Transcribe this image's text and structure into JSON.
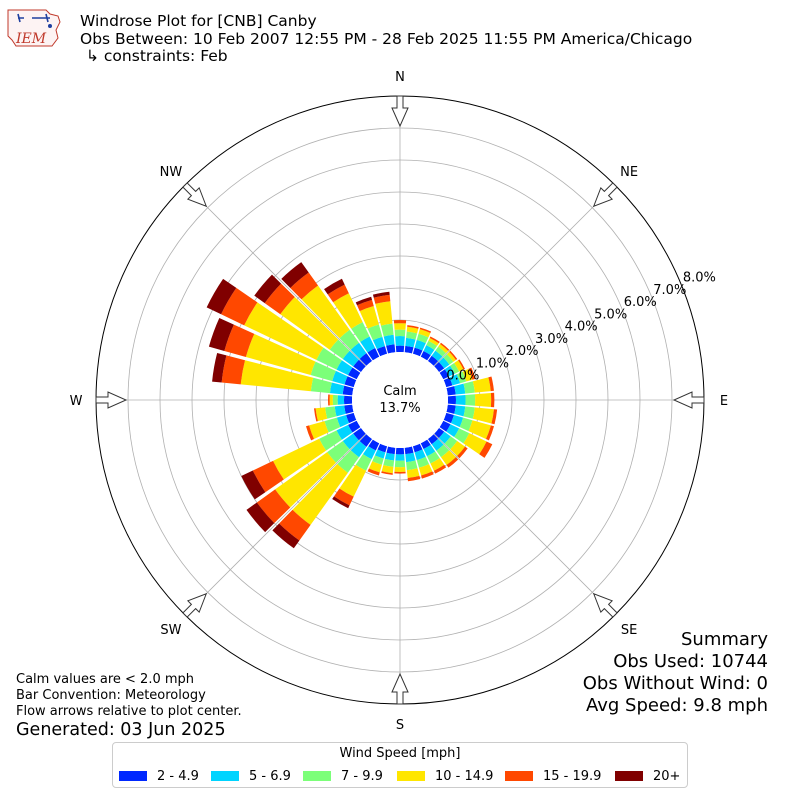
{
  "header": {
    "logo_text": "IEM",
    "title": "Windrose Plot for [CNB] Canby",
    "subtitle": "Obs Between: 10 Feb 2007 12:55 PM - 28 Feb 2025 11:55 PM America/Chicago",
    "constraints": "↳ constraints: Feb"
  },
  "summary": {
    "heading": "Summary",
    "obs_used": "Obs Used: 10744",
    "obs_without_wind": "Obs Without Wind: 0",
    "avg_speed": "Avg Speed: 9.8 mph"
  },
  "notes": {
    "calm": "Calm values are < 2.0 mph",
    "convention": "Bar Convention: Meteorology",
    "flow": "Flow arrows relative to plot center.",
    "generated": "Generated: 03 Jun 2025"
  },
  "chart_data": {
    "type": "windrose",
    "calm_label": "Calm",
    "calm_value": "13.7%",
    "cardinals": [
      "N",
      "NE",
      "E",
      "SE",
      "S",
      "SW",
      "W",
      "NW"
    ],
    "radial_ticks": [
      "0.0%",
      "1.0%",
      "2.0%",
      "3.0%",
      "4.0%",
      "5.0%",
      "6.0%",
      "7.0%",
      "8.0%"
    ],
    "rmax": 8.0,
    "legend_title": "Wind Speed [mph]",
    "bins": [
      {
        "label": "2 - 4.9",
        "color": "#0028ff"
      },
      {
        "label": "5 - 6.9",
        "color": "#00d4ff"
      },
      {
        "label": "7 - 9.9",
        "color": "#7cff79"
      },
      {
        "label": "10 - 14.9",
        "color": "#ffe600"
      },
      {
        "label": "15 - 19.9",
        "color": "#ff4800"
      },
      {
        "label": "20+",
        "color": "#800000"
      }
    ],
    "directions": [
      {
        "deg": 0,
        "values": [
          0.2,
          0.3,
          0.2,
          0.2,
          0.1,
          0.0
        ]
      },
      {
        "deg": 10,
        "values": [
          0.2,
          0.25,
          0.2,
          0.15,
          0.05,
          0.0
        ]
      },
      {
        "deg": 20,
        "values": [
          0.2,
          0.25,
          0.2,
          0.15,
          0.05,
          0.0
        ]
      },
      {
        "deg": 30,
        "values": [
          0.2,
          0.2,
          0.15,
          0.1,
          0.05,
          0.0
        ]
      },
      {
        "deg": 40,
        "values": [
          0.2,
          0.2,
          0.15,
          0.1,
          0.05,
          0.0
        ]
      },
      {
        "deg": 50,
        "values": [
          0.2,
          0.2,
          0.15,
          0.1,
          0.05,
          0.0
        ]
      },
      {
        "deg": 60,
        "values": [
          0.2,
          0.2,
          0.15,
          0.15,
          0.05,
          0.0
        ]
      },
      {
        "deg": 70,
        "values": [
          0.2,
          0.25,
          0.2,
          0.2,
          0.1,
          0.0
        ]
      },
      {
        "deg": 80,
        "values": [
          0.25,
          0.3,
          0.3,
          0.5,
          0.1,
          0.0
        ]
      },
      {
        "deg": 90,
        "values": [
          0.25,
          0.3,
          0.3,
          0.5,
          0.1,
          0.0
        ]
      },
      {
        "deg": 100,
        "values": [
          0.25,
          0.3,
          0.3,
          0.6,
          0.1,
          0.0
        ]
      },
      {
        "deg": 110,
        "values": [
          0.25,
          0.3,
          0.3,
          0.6,
          0.1,
          0.0
        ]
      },
      {
        "deg": 120,
        "values": [
          0.25,
          0.3,
          0.35,
          0.6,
          0.2,
          0.0
        ]
      },
      {
        "deg": 130,
        "values": [
          0.2,
          0.25,
          0.25,
          0.3,
          0.1,
          0.0
        ]
      },
      {
        "deg": 140,
        "values": [
          0.2,
          0.25,
          0.25,
          0.3,
          0.1,
          0.0
        ]
      },
      {
        "deg": 150,
        "values": [
          0.2,
          0.25,
          0.25,
          0.25,
          0.1,
          0.0
        ]
      },
      {
        "deg": 160,
        "values": [
          0.2,
          0.25,
          0.25,
          0.25,
          0.1,
          0.0
        ]
      },
      {
        "deg": 170,
        "values": [
          0.2,
          0.25,
          0.25,
          0.25,
          0.1,
          0.0
        ]
      },
      {
        "deg": 180,
        "values": [
          0.2,
          0.2,
          0.2,
          0.15,
          0.05,
          0.0
        ]
      },
      {
        "deg": 190,
        "values": [
          0.2,
          0.2,
          0.2,
          0.2,
          0.05,
          0.0
        ]
      },
      {
        "deg": 200,
        "values": [
          0.2,
          0.2,
          0.2,
          0.25,
          0.1,
          0.0
        ]
      },
      {
        "deg": 210,
        "values": [
          0.25,
          0.3,
          0.4,
          0.9,
          0.3,
          0.1
        ]
      },
      {
        "deg": 220,
        "values": [
          0.3,
          0.4,
          0.6,
          2.0,
          0.6,
          0.3
        ]
      },
      {
        "deg": 230,
        "values": [
          0.3,
          0.4,
          0.6,
          2.0,
          0.7,
          0.4
        ]
      },
      {
        "deg": 240,
        "values": [
          0.3,
          0.4,
          0.6,
          1.6,
          0.7,
          0.4
        ]
      },
      {
        "deg": 250,
        "values": [
          0.25,
          0.3,
          0.4,
          0.5,
          0.1,
          0.0
        ]
      },
      {
        "deg": 260,
        "values": [
          0.25,
          0.3,
          0.3,
          0.3,
          0.05,
          0.0
        ]
      },
      {
        "deg": 270,
        "values": [
          0.25,
          0.2,
          0.15,
          0.1,
          0.05,
          0.0
        ]
      },
      {
        "deg": 280,
        "values": [
          0.3,
          0.4,
          0.6,
          2.2,
          0.6,
          0.3
        ]
      },
      {
        "deg": 290,
        "values": [
          0.3,
          0.4,
          0.7,
          2.1,
          0.7,
          0.5
        ]
      },
      {
        "deg": 300,
        "values": [
          0.3,
          0.4,
          0.7,
          2.5,
          0.8,
          0.5
        ]
      },
      {
        "deg": 310,
        "values": [
          0.3,
          0.4,
          0.5,
          1.9,
          0.6,
          0.4
        ]
      },
      {
        "deg": 320,
        "values": [
          0.3,
          0.4,
          0.5,
          1.7,
          0.5,
          0.4
        ]
      },
      {
        "deg": 330,
        "values": [
          0.3,
          0.4,
          0.5,
          1.0,
          0.3,
          0.2
        ]
      },
      {
        "deg": 340,
        "values": [
          0.25,
          0.3,
          0.4,
          0.6,
          0.2,
          0.1
        ]
      },
      {
        "deg": 350,
        "values": [
          0.25,
          0.3,
          0.35,
          0.7,
          0.2,
          0.1
        ]
      }
    ]
  }
}
